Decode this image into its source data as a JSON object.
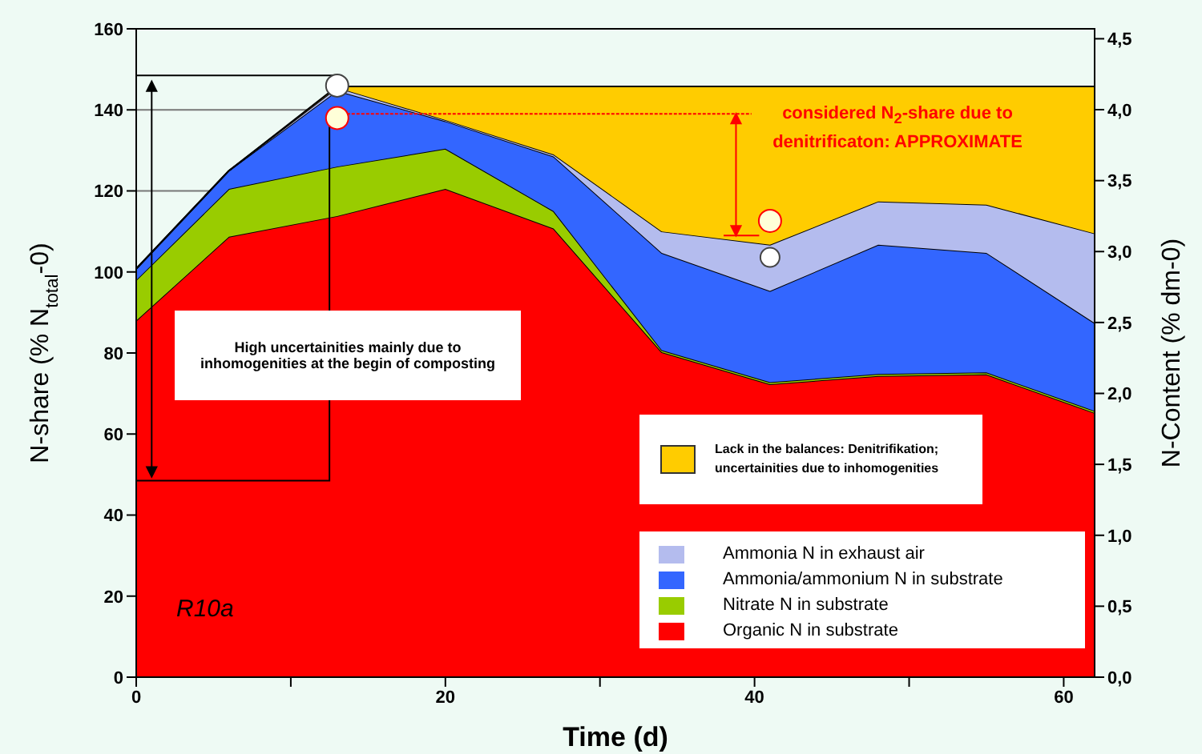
{
  "chart_data": {
    "type": "area",
    "stacked": true,
    "xlabel": "Time (d)",
    "ylabel": "N-share (% N$_{total}$-0)",
    "y2label": "N-Content (% dm-0)",
    "x": [
      0,
      6,
      13,
      20,
      27,
      34,
      41,
      48,
      55,
      62
    ],
    "series": [
      {
        "name": "Organic N in substrate",
        "color": "#ff0000",
        "values": [
          88,
          108.7,
          113.8,
          120.5,
          110.7,
          80.2,
          72.3,
          74.3,
          74.7,
          65.2
        ]
      },
      {
        "name": "Nitrate N in substrate",
        "color": "#99cc00",
        "values": [
          10,
          11.8,
          12.2,
          9.9,
          4.3,
          0.5,
          0.5,
          0.5,
          0.5,
          0.5
        ]
      },
      {
        "name": "Ammonia/ammonium N in substrate",
        "color": "#3366ff",
        "values": [
          2.8,
          4.5,
          18.7,
          6.8,
          13.5,
          24,
          22.5,
          31.9,
          29.5,
          21.7
        ]
      },
      {
        "name": "Ammonia N in exhaust air",
        "color": "#b4bcee",
        "values": [
          0,
          0,
          0.8,
          0.3,
          0.5,
          5.3,
          11.4,
          10.7,
          11.9,
          22.1
        ]
      },
      {
        "name": "Lack in the balances: Denitrifikation; uncertainities due to inhomogenities",
        "color": "#ffcc00",
        "values": [
          0,
          0,
          0.3,
          8.3,
          16.8,
          35.8,
          39.1,
          28.4,
          29.2,
          36.3
        ]
      }
    ],
    "xlim": [
      0,
      62
    ],
    "xticks": [
      0,
      {
        "value": 10,
        "label": null
      },
      20,
      {
        "value": 30,
        "label": null
      },
      40,
      {
        "value": 50,
        "label": null
      },
      60
    ],
    "ylim": [
      0,
      160
    ],
    "yticks": [
      0,
      20,
      40,
      60,
      80,
      100,
      120,
      140,
      160
    ],
    "y2lim": [
      0,
      4.57
    ],
    "y2ticks": [
      {
        "value": 0,
        "label": "0,0"
      },
      {
        "value": 0.5,
        "label": "0,5"
      },
      {
        "value": 1,
        "label": "1,0"
      },
      {
        "value": 1.5,
        "label": "1,5"
      },
      {
        "value": 2,
        "label": "2,0"
      },
      {
        "value": 2.5,
        "label": "2,5"
      },
      {
        "value": 3,
        "label": "3,0"
      },
      {
        "value": 3.5,
        "label": "3,5"
      },
      {
        "value": 4,
        "label": "4,0"
      },
      {
        "value": 4.5,
        "label": "4,5"
      }
    ],
    "grid": "y",
    "legend": "bottom right",
    "annotations": [
      "High uncertainities mainly due to inhomogenities at the begin of composting",
      "considered N$_{2}$-share due to denitrificaton: APPROXIMATE",
      "R10a"
    ]
  }
}
